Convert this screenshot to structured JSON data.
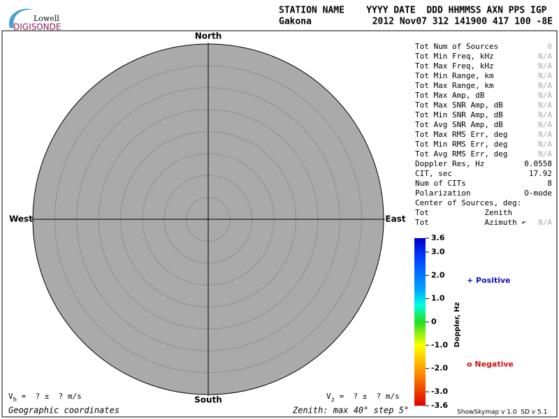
{
  "logo": {
    "top": "Lowell",
    "bottom": "DIGISONDE"
  },
  "header": {
    "labels": "STATION NAME    YYYY DATE  DDD HHMMSS AXN PPS IGP",
    "station": "Gakona",
    "values": "2012 Nov07 312 141900 417 100 -8E"
  },
  "directions": {
    "north": "North",
    "south": "South",
    "west": "West",
    "east": "East"
  },
  "stats": {
    "rows": [
      {
        "label": "Tot Num of Sources",
        "value": "0"
      },
      {
        "label": "Tot Min Freq, kHz",
        "value": "N/A"
      },
      {
        "label": "Tot Max Freq, kHz",
        "value": "N/A"
      },
      {
        "label": "Tot Min Range, km",
        "value": "N/A"
      },
      {
        "label": "Tot Max Range, km",
        "value": "N/A"
      },
      {
        "label": "Tot Max Amp, dB",
        "value": "N/A"
      },
      {
        "label": "Tot Max SNR Amp, dB",
        "value": "N/A"
      },
      {
        "label": "Tot Min SNR Amp, dB",
        "value": "N/A"
      },
      {
        "label": "Tot Avg SNR Amp, dB",
        "value": "N/A"
      },
      {
        "label": "Tot Max RMS Err, deg",
        "value": "N/A"
      },
      {
        "label": "Tot Min RMS Err, deg",
        "value": "N/A"
      },
      {
        "label": "Tot Avg RMS Err, deg",
        "value": "N/A"
      },
      {
        "label": "Doppler Res, Hz",
        "value": "0.0558"
      },
      {
        "label": "CIT, sec",
        "value": "17.92"
      },
      {
        "label": "Num of CITs",
        "value": "8"
      },
      {
        "label": "Polarization",
        "value": "O-mode"
      },
      {
        "label": "Center of Sources, deg:"
      },
      {
        "label": "Tot            Zenith"
      },
      {
        "label": "Tot            Azimuth ↶",
        "value": "N/A"
      }
    ]
  },
  "colorbar": {
    "label": "Doppler, Hz",
    "lim": [
      -3.6,
      3.6
    ],
    "ticks": [
      3.6,
      {
        "value": 3,
        "label": "3.0"
      },
      {
        "value": 2,
        "label": "2.0"
      },
      {
        "value": 1,
        "label": "1.0"
      },
      0,
      {
        "value": -1,
        "label": "-1.0"
      },
      {
        "value": -2,
        "label": "-2.0"
      },
      {
        "value": -3,
        "label": "-3.0"
      },
      -3.6
    ]
  },
  "legend": {
    "positive": "+ Positive",
    "negative": "o Negative"
  },
  "footer": {
    "vh": {
      "symbol": "V",
      "sub": "h",
      "text": " =  ? ±  ? m/s"
    },
    "vz": {
      "symbol": "V",
      "sub": "z",
      "text": " =  ? ±  ? m/s"
    },
    "coordinates": "Geographic coordinates",
    "zenith": "Zenith: max 40° step 5°",
    "version": "ShowSkymap v 1.0  SD v 5.1"
  }
}
